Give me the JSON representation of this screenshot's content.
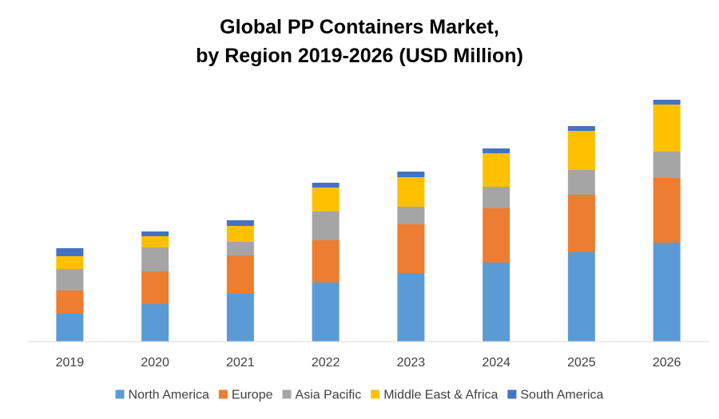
{
  "chart_data": {
    "type": "bar",
    "stacked": true,
    "title_lines": [
      "Global PP Containers Market,",
      "by Region 2019-2026 (USD Million)"
    ],
    "xlabel": "",
    "ylabel": "",
    "categories": [
      "2019",
      "2020",
      "2021",
      "2022",
      "2023",
      "2024",
      "2025",
      "2026"
    ],
    "series": [
      {
        "name": "North America",
        "color": "#5B9BD5",
        "values": [
          35,
          47,
          60,
          74,
          86,
          99,
          112,
          124
        ]
      },
      {
        "name": "Europe",
        "color": "#ED7D31",
        "values": [
          29,
          41,
          48,
          53,
          61,
          68,
          72,
          81
        ]
      },
      {
        "name": "Asia Pacific",
        "color": "#A5A5A5",
        "values": [
          27,
          30,
          17,
          36,
          22,
          27,
          31,
          33
        ]
      },
      {
        "name": "Middle East & Africa",
        "color": "#FFC000",
        "values": [
          16,
          14,
          20,
          30,
          37,
          42,
          49,
          59
        ]
      },
      {
        "name": "South America",
        "color": "#4472C4",
        "values": [
          10,
          6,
          7,
          6,
          7,
          6,
          6,
          6
        ]
      }
    ],
    "ylim": [
      0,
      305
    ],
    "grid": false,
    "y_axis_visible": false,
    "legend": "bottom"
  }
}
